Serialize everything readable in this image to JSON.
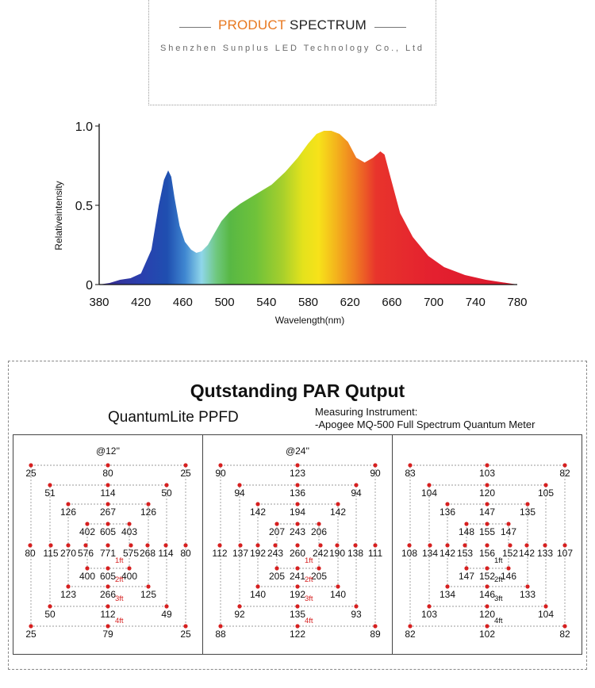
{
  "header": {
    "title_word1": "PRODUCT",
    "title_word2": "SPECTRUM",
    "subtitle": "Shenzhen Sunplus LED Technology Co., Ltd"
  },
  "chart_data": [
    {
      "type": "area",
      "title": "",
      "xlabel": "Wavelength(nm)",
      "ylabel": "Relativeintensity",
      "xlim": [
        380,
        780
      ],
      "ylim": [
        0,
        1.0
      ],
      "xticks": [
        380,
        420,
        460,
        500,
        540,
        580,
        620,
        660,
        700,
        740,
        780
      ],
      "yticks": [
        0,
        0.5,
        1.0
      ],
      "ytick_labels": [
        "0",
        "0.5",
        "1.0"
      ],
      "series": [
        {
          "name": "relative intensity",
          "x": [
            380,
            390,
            400,
            410,
            420,
            430,
            437,
            442,
            446,
            449,
            452,
            457,
            462,
            468,
            473,
            478,
            484,
            490,
            497,
            505,
            515,
            530,
            545,
            558,
            570,
            580,
            588,
            595,
            602,
            610,
            618,
            626,
            634,
            642,
            649,
            653,
            659,
            668,
            680,
            695,
            710,
            730,
            750,
            770,
            780
          ],
          "y": [
            0.0,
            0.01,
            0.03,
            0.04,
            0.07,
            0.22,
            0.5,
            0.66,
            0.72,
            0.68,
            0.55,
            0.37,
            0.27,
            0.22,
            0.2,
            0.21,
            0.25,
            0.32,
            0.4,
            0.46,
            0.51,
            0.57,
            0.63,
            0.71,
            0.8,
            0.89,
            0.95,
            0.97,
            0.97,
            0.95,
            0.9,
            0.8,
            0.77,
            0.8,
            0.84,
            0.82,
            0.67,
            0.45,
            0.3,
            0.18,
            0.11,
            0.06,
            0.03,
            0.01,
            0.0
          ]
        }
      ]
    },
    {
      "type": "table",
      "title": "Qutstanding PAR Qutput",
      "subtitle": "QuantumLite PPFD",
      "instrument_line1": "Measuring Instrument:",
      "instrument_line2": "-Apogee MQ-500 Full Spectrum Quantum Meter",
      "panels": [
        {
          "height": "@12''",
          "rows": [
            [
              25,
              80,
              25
            ],
            [
              51,
              114,
              50
            ],
            [
              126,
              267,
              126
            ],
            [
              402,
              605,
              403
            ],
            [
              80,
              115,
              270,
              576,
              771,
              575,
              268,
              114,
              80
            ],
            [
              400,
              605,
              400
            ],
            [
              123,
              266,
              125
            ],
            [
              50,
              112,
              49
            ],
            [
              25,
              79,
              25
            ]
          ]
        },
        {
          "height": "@24''",
          "rows": [
            [
              90,
              123,
              90
            ],
            [
              94,
              136,
              94
            ],
            [
              142,
              194,
              142
            ],
            [
              207,
              243,
              206
            ],
            [
              112,
              137,
              192,
              243,
              260,
              242,
              190,
              138,
              111
            ],
            [
              205,
              241,
              205
            ],
            [
              140,
              192,
              140
            ],
            [
              92,
              135,
              93
            ],
            [
              88,
              122,
              89
            ]
          ]
        },
        {
          "height": "",
          "rows": [
            [
              83,
              103,
              82
            ],
            [
              104,
              120,
              105
            ],
            [
              136,
              147,
              135
            ],
            [
              148,
              155,
              147
            ],
            [
              108,
              134,
              142,
              153,
              156,
              152,
              142,
              133,
              107
            ],
            [
              147,
              152,
              146
            ],
            [
              134,
              146,
              133
            ],
            [
              103,
              120,
              104
            ],
            [
              82,
              102,
              82
            ]
          ]
        }
      ],
      "ring_labels": [
        "1ft",
        "2ft",
        "3ft",
        "4ft"
      ],
      "colors": {
        "dot": "#d62020",
        "ring_label": "#d62020",
        "ring_label_last_panel": "#111111",
        "guide": "#9a9a9a"
      }
    }
  ]
}
